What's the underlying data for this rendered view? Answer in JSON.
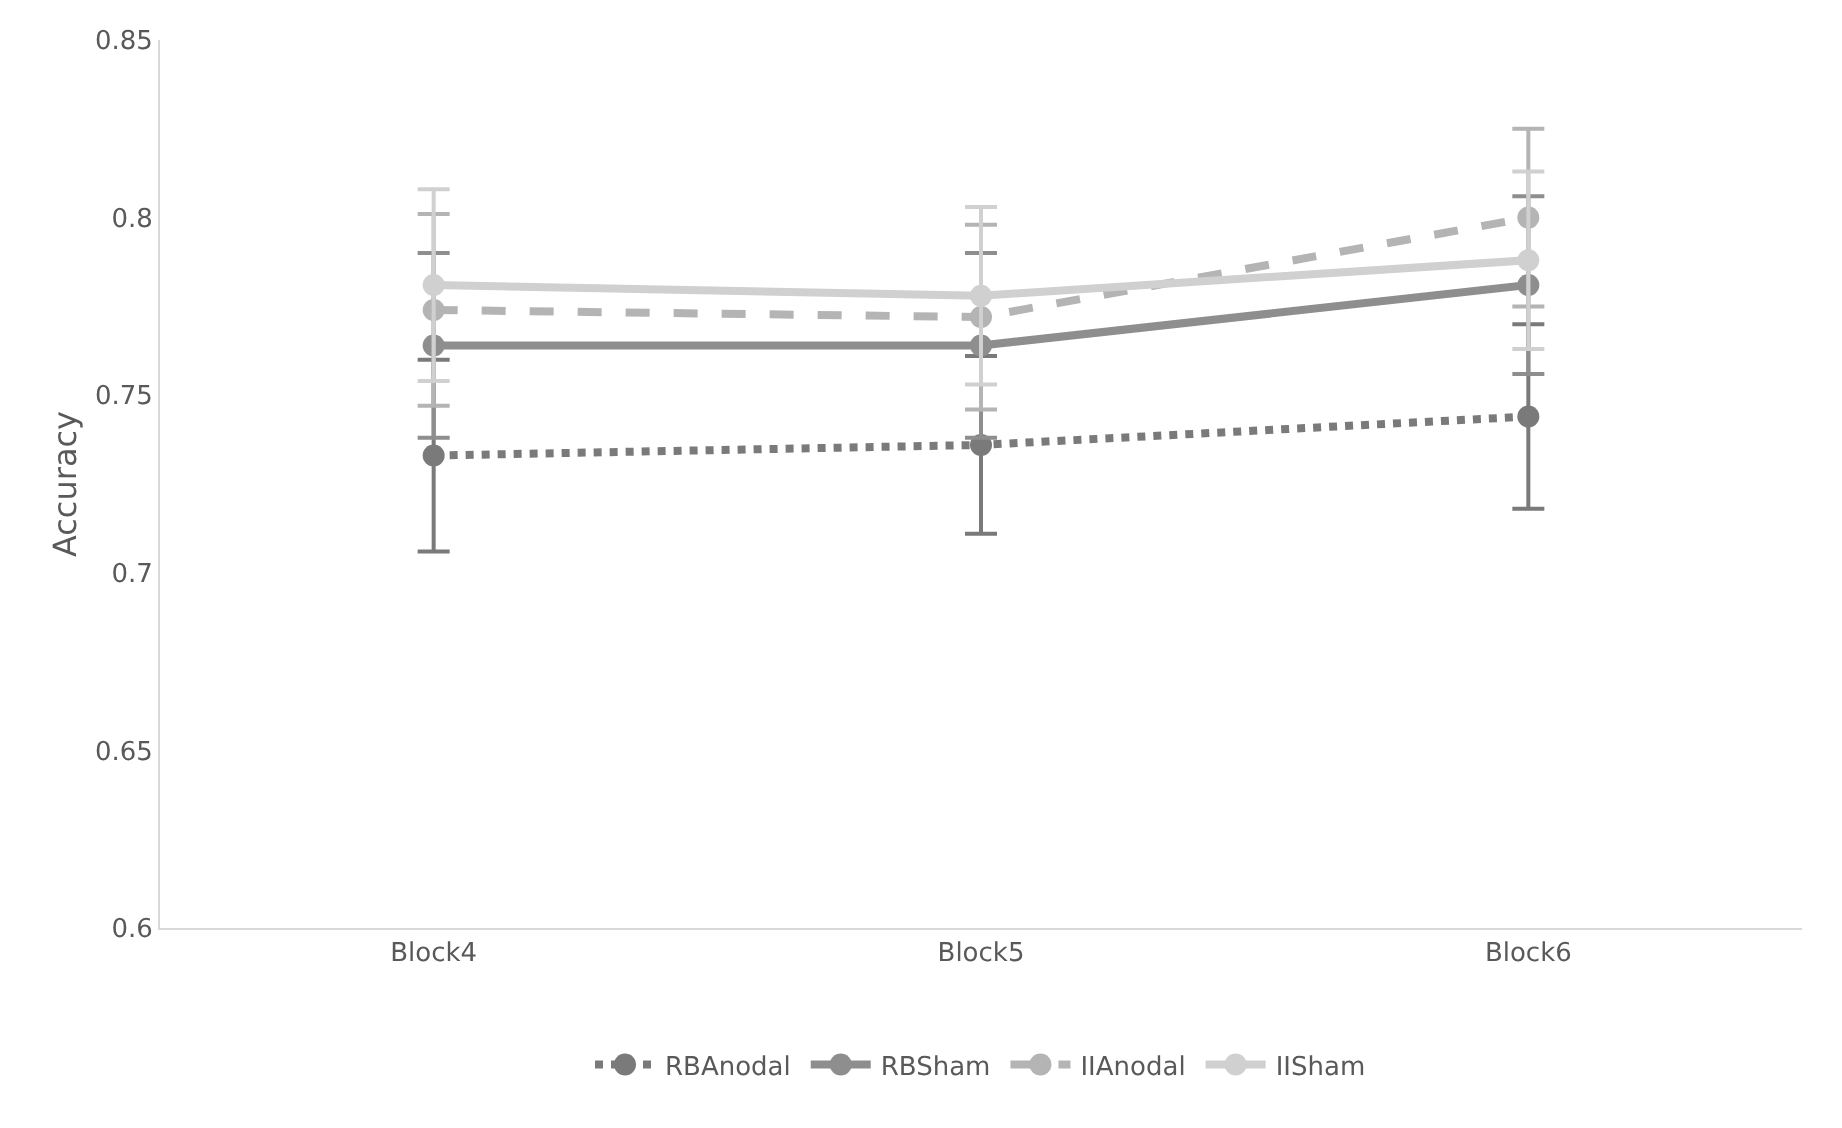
{
  "chart_data": {
    "type": "line",
    "ylabel": "Accuracy",
    "categories": [
      "Block4",
      "Block5",
      "Block6"
    ],
    "ylim": [
      0.6,
      0.85
    ],
    "yticks": [
      0.6,
      0.65,
      0.7,
      0.75,
      0.8,
      0.85
    ],
    "grid": false,
    "legend": "bottom",
    "marker": "circle",
    "series": [
      {
        "name": "RBAnodal",
        "color": "#7a7a7a",
        "line_style": "dotted",
        "values": [
          0.733,
          0.736,
          0.744
        ],
        "errors": [
          0.027,
          0.025,
          0.026
        ]
      },
      {
        "name": "RBSham",
        "color": "#8e8e8e",
        "line_style": "solid",
        "values": [
          0.764,
          0.764,
          0.781
        ],
        "errors": [
          0.026,
          0.026,
          0.025
        ]
      },
      {
        "name": "IIAnodal",
        "color": "#b4b4b4",
        "line_style": "dashed",
        "values": [
          0.774,
          0.772,
          0.8
        ],
        "errors": [
          0.027,
          0.026,
          0.025
        ]
      },
      {
        "name": "IISham",
        "color": "#d0d0d0",
        "line_style": "solid",
        "values": [
          0.781,
          0.778,
          0.788
        ],
        "errors": [
          0.027,
          0.025,
          0.025
        ]
      }
    ]
  }
}
